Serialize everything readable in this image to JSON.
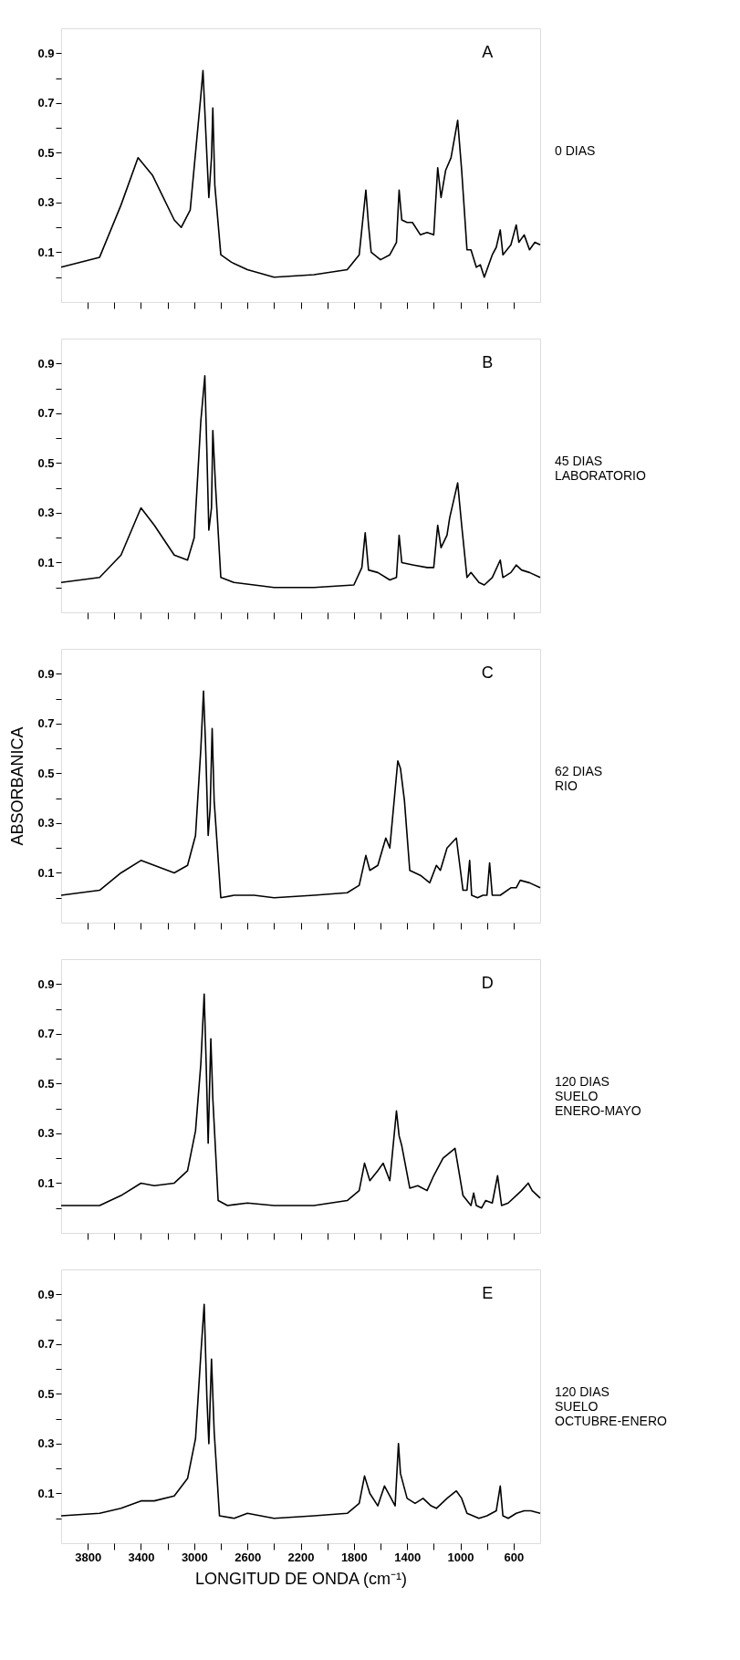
{
  "chart_data": [
    {
      "type": "line",
      "annotations": [
        "A",
        "0 DIAS"
      ],
      "color": "#000000",
      "grid": false,
      "tick_labels": "y",
      "xlim": [
        4000,
        400
      ],
      "ylim": [
        -0.1,
        1.0
      ],
      "xticks": [
        3800,
        {
          "value": 3600,
          "label": null
        },
        3400,
        {
          "value": 3200,
          "label": null
        },
        3000,
        {
          "value": 2800,
          "label": null
        },
        2600,
        {
          "value": 2400,
          "label": null
        },
        2200,
        {
          "value": 2000,
          "label": null
        },
        1800,
        {
          "value": 1600,
          "label": null
        },
        1400,
        {
          "value": 1200,
          "label": null
        },
        1000,
        {
          "value": 800,
          "label": null
        },
        600
      ],
      "yticks": [
        {
          "value": 0.0,
          "label": null
        },
        0.1,
        {
          "value": 0.2,
          "label": null
        },
        0.3,
        {
          "value": 0.4,
          "label": null
        },
        0.5,
        {
          "value": 0.6,
          "label": null
        },
        0.7,
        {
          "value": 0.8,
          "label": null
        },
        0.9
      ],
      "x": [
        4000,
        3711,
        3550,
        3422,
        3314,
        3150,
        3097,
        3030,
        2950,
        2934,
        2910,
        2890,
        2870,
        2860,
        2845,
        2800,
        2720,
        2600,
        2400,
        2100,
        1850,
        1760,
        1710,
        1690,
        1670,
        1600,
        1530,
        1480,
        1460,
        1440,
        1400,
        1360,
        1300,
        1250,
        1200,
        1170,
        1145,
        1110,
        1070,
        1020,
        990,
        950,
        920,
        880,
        850,
        820,
        760,
        730,
        700,
        680,
        620,
        580,
        560,
        520,
        480,
        440,
        400
      ],
      "values": [
        0.04,
        0.08,
        0.29,
        0.48,
        0.41,
        0.23,
        0.2,
        0.27,
        0.73,
        0.83,
        0.55,
        0.32,
        0.48,
        0.68,
        0.37,
        0.09,
        0.06,
        0.03,
        0.0,
        0.01,
        0.03,
        0.09,
        0.35,
        0.21,
        0.1,
        0.07,
        0.09,
        0.14,
        0.35,
        0.23,
        0.22,
        0.22,
        0.17,
        0.18,
        0.17,
        0.44,
        0.32,
        0.43,
        0.48,
        0.63,
        0.43,
        0.11,
        0.11,
        0.04,
        0.05,
        0.0,
        0.09,
        0.12,
        0.19,
        0.09,
        0.13,
        0.21,
        0.14,
        0.17,
        0.11,
        0.14,
        0.13
      ]
    },
    {
      "type": "line",
      "annotations": [
        "B",
        "45 DIAS\nLABORATORIO"
      ],
      "color": "#000000",
      "grid": false,
      "tick_labels": "y",
      "xlim": [
        4000,
        400
      ],
      "ylim": [
        -0.1,
        1.0
      ],
      "xticks": [
        3800,
        {
          "value": 3600,
          "label": null
        },
        3400,
        {
          "value": 3200,
          "label": null
        },
        3000,
        {
          "value": 2800,
          "label": null
        },
        2600,
        {
          "value": 2400,
          "label": null
        },
        2200,
        {
          "value": 2000,
          "label": null
        },
        1800,
        {
          "value": 1600,
          "label": null
        },
        1400,
        {
          "value": 1200,
          "label": null
        },
        1000,
        {
          "value": 800,
          "label": null
        },
        600
      ],
      "yticks": [
        {
          "value": 0.0,
          "label": null
        },
        0.1,
        {
          "value": 0.2,
          "label": null
        },
        0.3,
        {
          "value": 0.4,
          "label": null
        },
        0.5,
        {
          "value": 0.6,
          "label": null
        },
        0.7,
        {
          "value": 0.8,
          "label": null
        },
        0.9
      ],
      "x": [
        4000,
        3711,
        3550,
        3400,
        3300,
        3150,
        3050,
        3000,
        2950,
        2920,
        2905,
        2890,
        2870,
        2860,
        2840,
        2800,
        2700,
        2400,
        2100,
        1800,
        1740,
        1715,
        1690,
        1620,
        1530,
        1480,
        1460,
        1440,
        1350,
        1250,
        1200,
        1170,
        1145,
        1100,
        1080,
        1020,
        990,
        950,
        920,
        860,
        820,
        760,
        700,
        680,
        620,
        580,
        540,
        480,
        400
      ],
      "values": [
        0.02,
        0.04,
        0.13,
        0.32,
        0.25,
        0.13,
        0.11,
        0.2,
        0.67,
        0.85,
        0.55,
        0.23,
        0.32,
        0.63,
        0.41,
        0.04,
        0.02,
        0.0,
        0.0,
        0.01,
        0.08,
        0.22,
        0.07,
        0.06,
        0.03,
        0.04,
        0.21,
        0.1,
        0.09,
        0.08,
        0.08,
        0.25,
        0.16,
        0.21,
        0.28,
        0.42,
        0.25,
        0.04,
        0.06,
        0.02,
        0.01,
        0.04,
        0.11,
        0.04,
        0.06,
        0.09,
        0.07,
        0.06,
        0.04
      ]
    },
    {
      "type": "line",
      "annotations": [
        "C",
        "62 DIAS\n   RIO"
      ],
      "ylabel": "ABSORBANICA",
      "color": "#000000",
      "grid": false,
      "tick_labels": "y",
      "xlim": [
        4000,
        400
      ],
      "ylim": [
        -0.1,
        1.0
      ],
      "xticks": [
        3800,
        {
          "value": 3600,
          "label": null
        },
        3400,
        {
          "value": 3200,
          "label": null
        },
        3000,
        {
          "value": 2800,
          "label": null
        },
        2600,
        {
          "value": 2400,
          "label": null
        },
        2200,
        {
          "value": 2000,
          "label": null
        },
        1800,
        {
          "value": 1600,
          "label": null
        },
        1400,
        {
          "value": 1200,
          "label": null
        },
        1000,
        {
          "value": 800,
          "label": null
        },
        600
      ],
      "yticks": [
        {
          "value": 0.0,
          "label": null
        },
        0.1,
        {
          "value": 0.2,
          "label": null
        },
        0.3,
        {
          "value": 0.4,
          "label": null
        },
        0.5,
        {
          "value": 0.6,
          "label": null
        },
        0.7,
        {
          "value": 0.8,
          "label": null
        },
        0.9
      ],
      "x": [
        4000,
        3711,
        3550,
        3400,
        3300,
        3150,
        3050,
        2990,
        2950,
        2930,
        2915,
        2895,
        2880,
        2865,
        2850,
        2800,
        2700,
        2550,
        2400,
        2100,
        1850,
        1760,
        1710,
        1680,
        1620,
        1560,
        1530,
        1470,
        1450,
        1420,
        1380,
        1300,
        1230,
        1180,
        1150,
        1100,
        1030,
        980,
        950,
        930,
        915,
        870,
        830,
        800,
        780,
        760,
        700,
        620,
        580,
        550,
        480,
        400
      ],
      "values": [
        0.01,
        0.03,
        0.1,
        0.15,
        0.13,
        0.1,
        0.13,
        0.25,
        0.6,
        0.83,
        0.62,
        0.25,
        0.36,
        0.68,
        0.39,
        0.0,
        0.01,
        0.01,
        0.0,
        0.01,
        0.02,
        0.05,
        0.17,
        0.11,
        0.13,
        0.24,
        0.2,
        0.55,
        0.52,
        0.39,
        0.11,
        0.09,
        0.06,
        0.13,
        0.11,
        0.2,
        0.24,
        0.03,
        0.03,
        0.15,
        0.01,
        0.0,
        0.01,
        0.01,
        0.14,
        0.01,
        0.01,
        0.04,
        0.04,
        0.07,
        0.06,
        0.04
      ]
    },
    {
      "type": "line",
      "annotations": [
        "D",
        "120 DIAS\n  SUELO\nENERO-MAYO"
      ],
      "color": "#000000",
      "grid": false,
      "tick_labels": "y",
      "xlim": [
        4000,
        400
      ],
      "ylim": [
        -0.1,
        1.0
      ],
      "xticks": [
        3800,
        {
          "value": 3600,
          "label": null
        },
        3400,
        {
          "value": 3200,
          "label": null
        },
        3000,
        {
          "value": 2800,
          "label": null
        },
        2600,
        {
          "value": 2400,
          "label": null
        },
        2200,
        {
          "value": 2000,
          "label": null
        },
        1800,
        {
          "value": 1600,
          "label": null
        },
        1400,
        {
          "value": 1200,
          "label": null
        },
        1000,
        {
          "value": 800,
          "label": null
        },
        600
      ],
      "yticks": [
        {
          "value": 0.0,
          "label": null
        },
        0.1,
        {
          "value": 0.2,
          "label": null
        },
        0.3,
        {
          "value": 0.4,
          "label": null
        },
        0.5,
        {
          "value": 0.6,
          "label": null
        },
        0.7,
        {
          "value": 0.8,
          "label": null
        },
        0.9
      ],
      "x": [
        4000,
        3711,
        3550,
        3400,
        3300,
        3150,
        3050,
        2990,
        2950,
        2925,
        2910,
        2895,
        2875,
        2860,
        2820,
        2750,
        2600,
        2400,
        2100,
        1850,
        1760,
        1720,
        1680,
        1620,
        1580,
        1530,
        1480,
        1460,
        1440,
        1380,
        1320,
        1250,
        1200,
        1130,
        1040,
        980,
        920,
        900,
        880,
        840,
        810,
        760,
        720,
        690,
        640,
        560,
        540,
        490,
        460,
        400
      ],
      "values": [
        0.01,
        0.01,
        0.05,
        0.1,
        0.09,
        0.1,
        0.15,
        0.31,
        0.58,
        0.86,
        0.58,
        0.26,
        0.68,
        0.44,
        0.03,
        0.01,
        0.02,
        0.01,
        0.01,
        0.03,
        0.07,
        0.18,
        0.11,
        0.15,
        0.18,
        0.11,
        0.39,
        0.29,
        0.25,
        0.08,
        0.09,
        0.07,
        0.13,
        0.2,
        0.24,
        0.05,
        0.01,
        0.06,
        0.01,
        0.0,
        0.03,
        0.02,
        0.13,
        0.01,
        0.02,
        0.06,
        0.07,
        0.1,
        0.07,
        0.04
      ]
    },
    {
      "type": "line",
      "annotations": [
        "E",
        "120 DIAS\n  SUELO\nOCTUBRE-ENERO"
      ],
      "xlabel": "LONGITUD DE ONDA (cm⁻¹)",
      "color": "#000000",
      "grid": false,
      "xlim": [
        4000,
        400
      ],
      "ylim": [
        -0.1,
        1.0
      ],
      "xticks": [
        3800,
        {
          "value": 3600,
          "label": null
        },
        3400,
        {
          "value": 3200,
          "label": null
        },
        3000,
        {
          "value": 2800,
          "label": null
        },
        2600,
        {
          "value": 2400,
          "label": null
        },
        2200,
        {
          "value": 2000,
          "label": null
        },
        1800,
        {
          "value": 1600,
          "label": null
        },
        1400,
        {
          "value": 1200,
          "label": null
        },
        1000,
        {
          "value": 800,
          "label": null
        },
        600
      ],
      "yticks": [
        {
          "value": 0.0,
          "label": null
        },
        0.1,
        {
          "value": 0.2,
          "label": null
        },
        0.3,
        {
          "value": 0.4,
          "label": null
        },
        0.5,
        {
          "value": 0.6,
          "label": null
        },
        0.7,
        {
          "value": 0.8,
          "label": null
        },
        0.9
      ],
      "x": [
        4000,
        3711,
        3550,
        3400,
        3300,
        3150,
        3050,
        2990,
        2950,
        2925,
        2905,
        2890,
        2870,
        2850,
        2810,
        2700,
        2600,
        2400,
        2100,
        1850,
        1760,
        1720,
        1680,
        1620,
        1570,
        1530,
        1490,
        1465,
        1450,
        1400,
        1340,
        1280,
        1220,
        1180,
        1100,
        1030,
        990,
        950,
        860,
        800,
        730,
        700,
        680,
        640,
        580,
        520,
        470,
        400
      ],
      "values": [
        0.01,
        0.02,
        0.04,
        0.07,
        0.07,
        0.09,
        0.16,
        0.32,
        0.66,
        0.86,
        0.49,
        0.3,
        0.64,
        0.35,
        0.01,
        0.0,
        0.02,
        0.0,
        0.01,
        0.02,
        0.06,
        0.17,
        0.1,
        0.05,
        0.13,
        0.09,
        0.05,
        0.3,
        0.18,
        0.08,
        0.06,
        0.08,
        0.05,
        0.04,
        0.08,
        0.11,
        0.08,
        0.02,
        0.0,
        0.01,
        0.03,
        0.13,
        0.01,
        0.0,
        0.02,
        0.03,
        0.03,
        0.02
      ]
    }
  ]
}
